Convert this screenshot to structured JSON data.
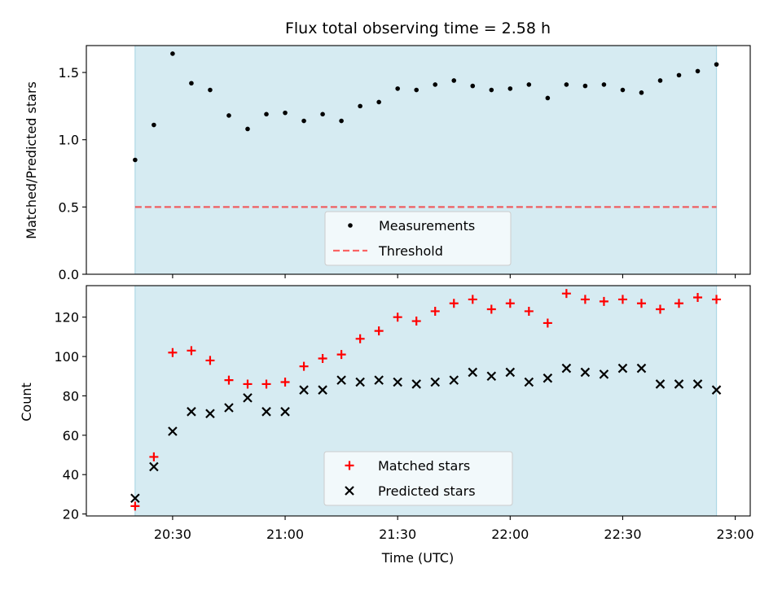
{
  "colors": {
    "background": "#ffffff",
    "observing_band": "#add8e6",
    "measurement": "#000000",
    "threshold": "#ff0000",
    "matched": "#ff0000",
    "predicted": "#000000",
    "legend_bg": "#f7fbfd"
  },
  "x_axis": {
    "label": "Time (UTC)",
    "range_minutes": [
      1207,
      1384
    ],
    "ticks": [
      {
        "value": 1230,
        "label": "20:30"
      },
      {
        "value": 1260,
        "label": "21:00"
      },
      {
        "value": 1290,
        "label": "21:30"
      },
      {
        "value": 1320,
        "label": "22:00"
      },
      {
        "value": 1350,
        "label": "22:30"
      },
      {
        "value": 1380,
        "label": "23:00"
      }
    ]
  },
  "chart_data": [
    {
      "type": "scatter",
      "title": "Flux total observing time = 2.58 h",
      "ylabel": "Matched/Predicted stars",
      "ylim": [
        0,
        1.7
      ],
      "yticks": [
        {
          "value": 0,
          "label": "0.0"
        },
        {
          "value": 0.5,
          "label": "0.5"
        },
        {
          "value": 1.0,
          "label": "1.0"
        },
        {
          "value": 1.5,
          "label": "1.5"
        }
      ],
      "shaded_span": {
        "x": [
          1220,
          1375
        ]
      },
      "x": [
        1220,
        1225,
        1230,
        1235,
        1240,
        1245,
        1250,
        1255,
        1260,
        1265,
        1270,
        1275,
        1280,
        1285,
        1290,
        1295,
        1300,
        1305,
        1310,
        1315,
        1320,
        1325,
        1330,
        1335,
        1340,
        1345,
        1350,
        1355,
        1360,
        1365,
        1370,
        1375
      ],
      "series": [
        {
          "name": "Measurements",
          "marker": "dot",
          "values": [
            0.85,
            1.11,
            1.64,
            1.42,
            1.37,
            1.18,
            1.08,
            1.19,
            1.2,
            1.14,
            1.19,
            1.14,
            1.25,
            1.28,
            1.38,
            1.37,
            1.41,
            1.44,
            1.4,
            1.37,
            1.38,
            1.41,
            1.31,
            1.41,
            1.4,
            1.41,
            1.37,
            1.35,
            1.44,
            1.48,
            1.51,
            1.56
          ]
        },
        {
          "name": "Threshold",
          "marker": "dashed-line",
          "x": [
            1220,
            1375
          ],
          "values": [
            0.5,
            0.5
          ]
        }
      ],
      "legend": {
        "placement": "lower center",
        "entries": [
          "Measurements",
          "Threshold"
        ]
      }
    },
    {
      "type": "scatter",
      "xlabel": "Time (UTC)",
      "ylabel": "Count",
      "ylim": [
        19,
        136
      ],
      "yticks": [
        {
          "value": 20,
          "label": "20"
        },
        {
          "value": 40,
          "label": "40"
        },
        {
          "value": 60,
          "label": "60"
        },
        {
          "value": 80,
          "label": "80"
        },
        {
          "value": 100,
          "label": "100"
        },
        {
          "value": 120,
          "label": "120"
        }
      ],
      "shaded_span": {
        "x": [
          1220,
          1375
        ]
      },
      "x": [
        1220,
        1225,
        1230,
        1235,
        1240,
        1245,
        1250,
        1255,
        1260,
        1265,
        1270,
        1275,
        1280,
        1285,
        1290,
        1295,
        1300,
        1305,
        1310,
        1315,
        1320,
        1325,
        1330,
        1335,
        1340,
        1345,
        1350,
        1355,
        1360,
        1365,
        1370,
        1375
      ],
      "series": [
        {
          "name": "Matched stars",
          "marker": "plus",
          "values": [
            24,
            49,
            102,
            103,
            98,
            88,
            86,
            86,
            87,
            95,
            99,
            101,
            109,
            113,
            120,
            118,
            123,
            127,
            129,
            124,
            127,
            123,
            117,
            132,
            129,
            128,
            129,
            127,
            124,
            127,
            130,
            129
          ]
        },
        {
          "name": "Predicted stars",
          "marker": "x",
          "values": [
            28,
            44,
            62,
            72,
            71,
            74,
            79,
            72,
            72,
            83,
            83,
            88,
            87,
            88,
            87,
            86,
            87,
            88,
            92,
            90,
            92,
            87,
            89,
            94,
            92,
            91,
            94,
            94,
            86,
            86,
            86,
            83
          ]
        }
      ],
      "legend": {
        "placement": "lower center",
        "entries": [
          "Matched stars",
          "Predicted stars"
        ]
      }
    }
  ]
}
